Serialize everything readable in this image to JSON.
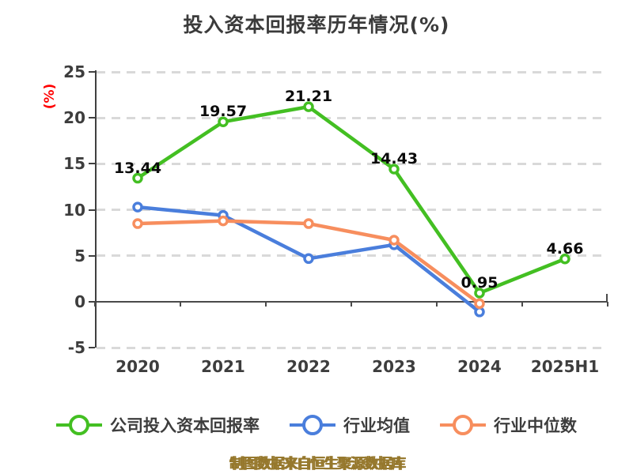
{
  "title": "投入资本回报率历年情况(%)",
  "caption": "制图数据来自恒生聚源数据库",
  "chart_data": {
    "type": "line",
    "categories": [
      "2020",
      "2021",
      "2022",
      "2023",
      "2024",
      "2025H1"
    ],
    "series": [
      {
        "name": "公司投入资本回报率",
        "color": "#43bf22",
        "values": [
          13.44,
          19.57,
          21.21,
          14.43,
          0.95,
          4.66
        ],
        "labeled": true
      },
      {
        "name": "行业均值",
        "color": "#4a7edc",
        "values": [
          10.3,
          9.4,
          4.7,
          6.2,
          -1.1,
          null
        ],
        "labeled": false
      },
      {
        "name": "行业中位数",
        "color": "#f78e5e",
        "values": [
          8.5,
          8.8,
          8.5,
          6.7,
          -0.2,
          null
        ],
        "labeled": false
      }
    ],
    "ylabel": "(%)",
    "ylabel_color": "#ff0000",
    "y_ticks": [
      25,
      20,
      15,
      10,
      5,
      0,
      -5
    ],
    "ylim": [
      -5,
      25
    ],
    "grid": "dashed-horizontal",
    "legend_position": "bottom",
    "marker_style": "white-filled-circle"
  },
  "colors": {
    "grid": "#d9d9d9",
    "axis": "#404040",
    "tick_label": "#3d3d3d",
    "title": "#3b3b3b",
    "data_label": "#0a0a0a",
    "caption": "#96782d",
    "background": "#ffffff"
  }
}
